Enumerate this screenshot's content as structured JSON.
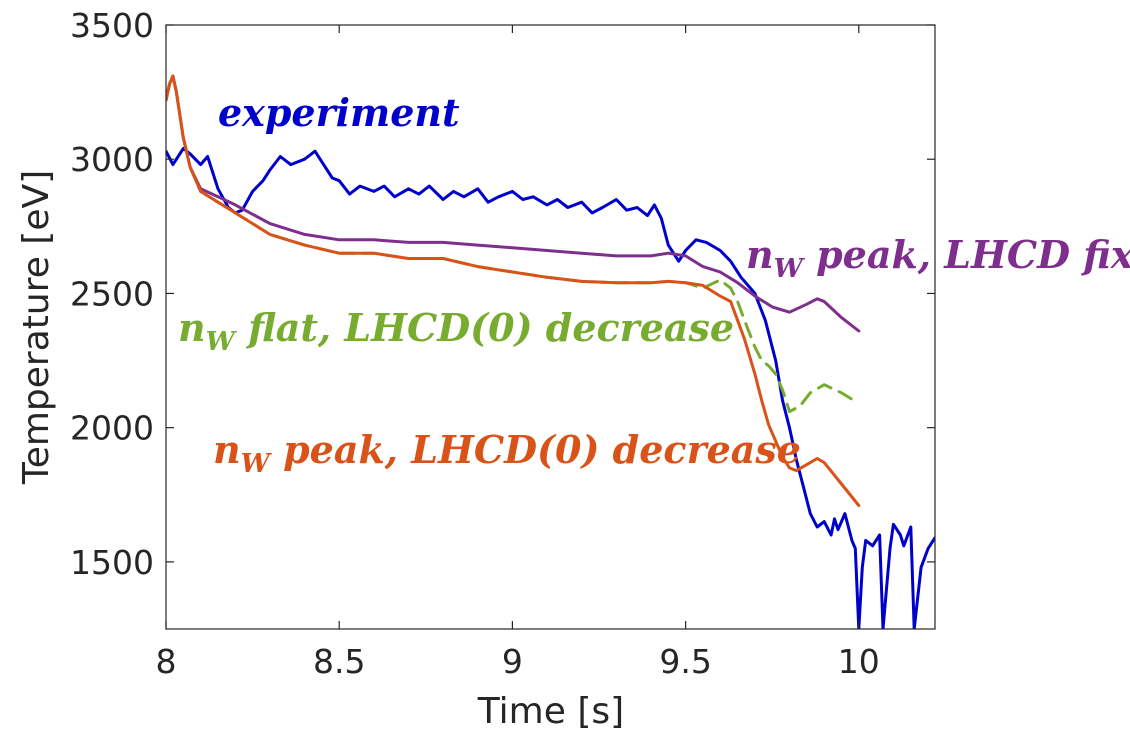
{
  "chart_data": {
    "type": "line",
    "xlabel": "Time [s]",
    "ylabel": "Temperature [eV]",
    "xlim": [
      8,
      10.22
    ],
    "ylim": [
      1250,
      3500
    ],
    "xticks": [
      "8",
      "8.5",
      "9",
      "9.5",
      "10"
    ],
    "yticks": [
      "1500",
      "2000",
      "2500",
      "3000",
      "3500"
    ],
    "xtick_values": [
      8,
      8.5,
      9,
      9.5,
      10
    ],
    "ytick_values": [
      1500,
      2000,
      2500,
      3000,
      3500
    ],
    "grid": false,
    "series": [
      {
        "name": "experiment",
        "color": "#0000cc",
        "dashed": false,
        "x": [
          8.0,
          8.02,
          8.05,
          8.07,
          8.1,
          8.12,
          8.15,
          8.18,
          8.2,
          8.22,
          8.25,
          8.28,
          8.3,
          8.33,
          8.36,
          8.4,
          8.43,
          8.45,
          8.48,
          8.5,
          8.53,
          8.56,
          8.6,
          8.63,
          8.66,
          8.7,
          8.73,
          8.76,
          8.8,
          8.83,
          8.86,
          8.9,
          8.93,
          8.96,
          9.0,
          9.03,
          9.06,
          9.1,
          9.13,
          9.16,
          9.2,
          9.23,
          9.26,
          9.3,
          9.33,
          9.36,
          9.39,
          9.41,
          9.43,
          9.45,
          9.48,
          9.5,
          9.53,
          9.56,
          9.6,
          9.63,
          9.66,
          9.7,
          9.73,
          9.76,
          9.78,
          9.8,
          9.82,
          9.84,
          9.86,
          9.88,
          9.9,
          9.92,
          9.93,
          9.94,
          9.96,
          9.98,
          9.99,
          10.0,
          10.01,
          10.02,
          10.04,
          10.06,
          10.07,
          10.09,
          10.1,
          10.12,
          10.13,
          10.15,
          10.16,
          10.18,
          10.2,
          10.22
        ],
        "y": [
          3030,
          2980,
          3040,
          3020,
          2980,
          3010,
          2890,
          2820,
          2800,
          2810,
          2880,
          2920,
          2960,
          3010,
          2980,
          3000,
          3030,
          2990,
          2930,
          2920,
          2870,
          2900,
          2880,
          2900,
          2860,
          2890,
          2870,
          2900,
          2850,
          2880,
          2860,
          2890,
          2840,
          2860,
          2880,
          2850,
          2860,
          2830,
          2850,
          2820,
          2840,
          2800,
          2820,
          2850,
          2810,
          2820,
          2790,
          2830,
          2780,
          2680,
          2620,
          2660,
          2700,
          2690,
          2660,
          2620,
          2560,
          2500,
          2400,
          2250,
          2100,
          2000,
          1880,
          1780,
          1680,
          1630,
          1650,
          1600,
          1660,
          1620,
          1680,
          1580,
          1550,
          1250,
          1480,
          1580,
          1560,
          1600,
          1250,
          1550,
          1640,
          1600,
          1560,
          1630,
          1250,
          1480,
          1550,
          1590
        ]
      },
      {
        "name": "n_W peak, LHCD fix",
        "color": "#7e2f8e",
        "dashed": false,
        "x": [
          8.0,
          8.01,
          8.02,
          8.03,
          8.05,
          8.07,
          8.1,
          8.15,
          8.2,
          8.3,
          8.4,
          8.5,
          8.6,
          8.7,
          8.8,
          8.9,
          9.0,
          9.1,
          9.2,
          9.3,
          9.35,
          9.4,
          9.45,
          9.5,
          9.55,
          9.6,
          9.65,
          9.7,
          9.75,
          9.8,
          9.85,
          9.88,
          9.9,
          9.95,
          10.0
        ],
        "y": [
          3220,
          3280,
          3310,
          3250,
          3080,
          2970,
          2890,
          2860,
          2830,
          2760,
          2720,
          2700,
          2700,
          2690,
          2690,
          2680,
          2670,
          2660,
          2650,
          2640,
          2640,
          2640,
          2650,
          2640,
          2600,
          2580,
          2540,
          2490,
          2450,
          2430,
          2460,
          2480,
          2470,
          2410,
          2360
        ]
      },
      {
        "name": "n_W flat, LHCD(0) decrease",
        "color": "#77ac30",
        "dashed": true,
        "x": [
          8.0,
          8.01,
          8.02,
          8.03,
          8.05,
          8.07,
          8.1,
          8.15,
          8.2,
          8.3,
          8.4,
          8.5,
          8.6,
          8.7,
          8.8,
          8.9,
          9.0,
          9.1,
          9.2,
          9.3,
          9.4,
          9.45,
          9.5,
          9.55,
          9.6,
          9.63,
          9.65,
          9.67,
          9.7,
          9.72,
          9.74,
          9.76,
          9.78,
          9.8,
          9.83,
          9.86,
          9.9,
          9.95,
          10.0
        ],
        "y": [
          3220,
          3280,
          3310,
          3250,
          3080,
          2970,
          2880,
          2840,
          2800,
          2720,
          2680,
          2650,
          2650,
          2630,
          2630,
          2600,
          2580,
          2560,
          2545,
          2540,
          2540,
          2545,
          2540,
          2520,
          2550,
          2520,
          2470,
          2400,
          2300,
          2250,
          2230,
          2200,
          2140,
          2060,
          2080,
          2130,
          2160,
          2130,
          2090
        ]
      },
      {
        "name": "n_W peak, LHCD(0) decrease",
        "color": "#d95319",
        "dashed": false,
        "x": [
          8.0,
          8.01,
          8.02,
          8.03,
          8.05,
          8.07,
          8.1,
          8.15,
          8.2,
          8.3,
          8.4,
          8.5,
          8.6,
          8.7,
          8.8,
          8.9,
          9.0,
          9.1,
          9.2,
          9.3,
          9.4,
          9.45,
          9.5,
          9.55,
          9.6,
          9.63,
          9.65,
          9.67,
          9.7,
          9.72,
          9.74,
          9.76,
          9.78,
          9.8,
          9.82,
          9.86,
          9.88,
          9.9,
          9.95,
          10.0
        ],
        "y": [
          3220,
          3280,
          3310,
          3250,
          3080,
          2970,
          2880,
          2840,
          2800,
          2720,
          2680,
          2650,
          2650,
          2630,
          2630,
          2600,
          2580,
          2560,
          2545,
          2540,
          2540,
          2545,
          2540,
          2530,
          2490,
          2470,
          2400,
          2330,
          2200,
          2100,
          2010,
          1950,
          1890,
          1850,
          1840,
          1870,
          1885,
          1870,
          1790,
          1710
        ]
      }
    ],
    "annotations": [
      {
        "text": "experiment",
        "sub": "",
        "rest": "",
        "color": "#0000cc"
      },
      {
        "text": "n",
        "sub": "W",
        "rest": " peak, LHCD fix",
        "color": "#7e2f8e"
      },
      {
        "text": "n",
        "sub": "W",
        "rest": " flat, LHCD(0) decrease",
        "color": "#77ac30"
      },
      {
        "text": "n",
        "sub": "W",
        "rest": " peak, LHCD(0) decrease",
        "color": "#d95319"
      }
    ]
  }
}
